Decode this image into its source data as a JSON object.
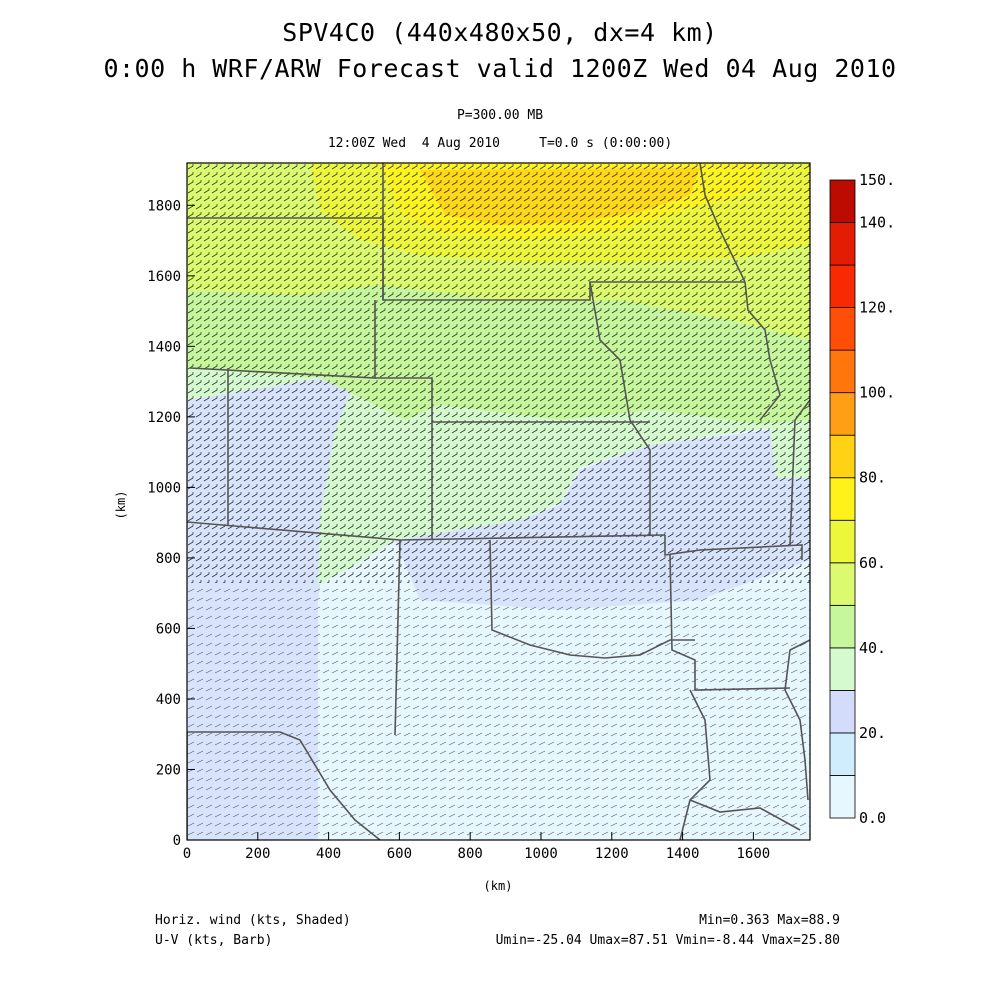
{
  "title": {
    "line1": "SPV4C0 (440x480x50, dx=4 km)",
    "line2": "0:00 h WRF/ARW Forecast valid 1200Z Wed 04 Aug 2010",
    "level": "P=300.00 MB",
    "time": "12:00Z Wed  4 Aug 2010     T=0.0 s (0:00:00)"
  },
  "axes": {
    "x_label": "(km)",
    "y_label": "(km)",
    "x_ticks": [
      "0",
      "200",
      "400",
      "600",
      "800",
      "1000",
      "1200",
      "1400",
      "1600"
    ],
    "y_ticks": [
      "0",
      "200",
      "400",
      "600",
      "800",
      "1000",
      "1200",
      "1400",
      "1600",
      "1800"
    ],
    "x_range": [
      0,
      1760
    ],
    "y_range": [
      0,
      1920
    ]
  },
  "colorbar": {
    "levels": [
      0,
      10,
      20,
      30,
      40,
      50,
      60,
      70,
      80,
      90,
      100,
      110,
      120,
      130,
      140,
      150
    ],
    "labels": [
      "0.0",
      "20.",
      "40.",
      "60.",
      "80.",
      "100.",
      "120.",
      "140.",
      "150."
    ],
    "colors": [
      "#e6f7fe",
      "#cfedfd",
      "#d3dcfb",
      "#d6fad0",
      "#c7f79d",
      "#dcfa6f",
      "#ecf73c",
      "#fff21b",
      "#ffd216",
      "#ff9f15",
      "#ff760d",
      "#ff4e07",
      "#f72a04",
      "#e21d03",
      "#bc0c02"
    ]
  },
  "footer": {
    "field1": "Horiz. wind (kts, Shaded)",
    "field2": "U-V (kts, Barb)",
    "minmax": "Min=0.363 Max=88.9",
    "uv_minmax": "Umin=-25.04 Umax=87.51 Vmin=-8.44 Vmax=25.80"
  }
}
